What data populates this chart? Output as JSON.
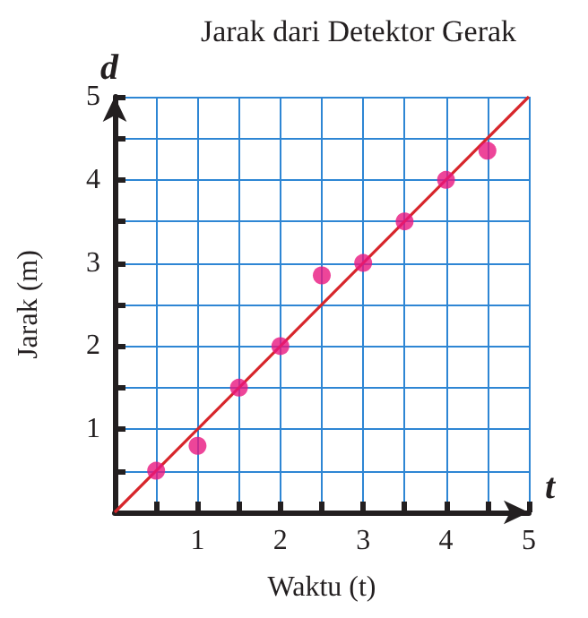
{
  "chart_data": {
    "type": "scatter",
    "title": "Jarak dari Detektor Gerak",
    "xlabel": "Waktu (t)",
    "ylabel": "Jarak (m)",
    "annotations": [
      "d",
      "t"
    ],
    "series": [
      {
        "color": "#e8177f",
        "x": [
          0.5,
          1,
          1.5,
          2,
          2.5,
          3,
          3.5,
          4,
          4.5
        ],
        "values": [
          0.5,
          0.8,
          1.5,
          2,
          2.85,
          3,
          3.5,
          4,
          4.35
        ],
        "marker": "circle"
      },
      {
        "type": "line",
        "color": "#d7262b",
        "x": [
          0,
          5
        ],
        "values": [
          0,
          5
        ],
        "marker": "none",
        "line_style": "solid"
      }
    ],
    "xlim": [
      0,
      5
    ],
    "ylim": [
      0,
      5
    ],
    "xticks": [
      {
        "value": 0,
        "label": null
      },
      {
        "value": 0.5,
        "label": null
      },
      1,
      {
        "value": 1.5,
        "label": null
      },
      2,
      {
        "value": 2.5,
        "label": null
      },
      3,
      {
        "value": 3.5,
        "label": null
      },
      4,
      {
        "value": 4.5,
        "label": null
      },
      5
    ],
    "yticks": [
      {
        "value": 0,
        "label": null
      },
      {
        "value": 0.5,
        "label": null
      },
      1,
      {
        "value": 1.5,
        "label": null
      },
      2,
      {
        "value": 2.5,
        "label": null
      },
      3,
      {
        "value": 3.5,
        "label": null
      },
      4,
      {
        "value": 4.5,
        "label": null
      },
      5
    ],
    "grid": true
  }
}
